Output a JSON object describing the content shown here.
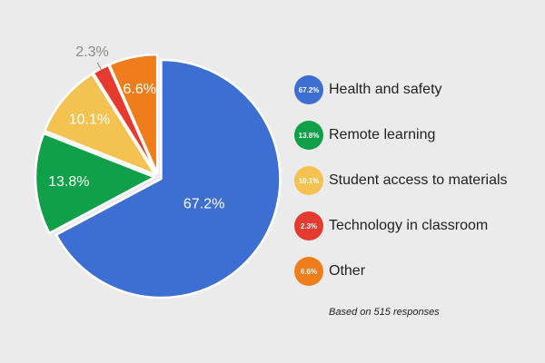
{
  "chart_data": {
    "type": "pie",
    "title": "",
    "slices": [
      {
        "label": "Health and safety",
        "value": 67.2,
        "display": "67.2%",
        "badge": "67.2%",
        "color": "#3d6fd2"
      },
      {
        "label": "Remote learning",
        "value": 13.8,
        "display": "13.8%",
        "badge": "13.8%",
        "color": "#10a04a"
      },
      {
        "label": "Student access to materials",
        "value": 10.1,
        "display": "10.1%",
        "badge": "10.1%",
        "color": "#f3c251"
      },
      {
        "label": "Technology in classroom",
        "value": 2.3,
        "display": "2.3%",
        "badge": "2.3%",
        "color": "#e53a2e"
      },
      {
        "label": "Other",
        "value": 6.6,
        "display": "6.6%",
        "badge": "6.6%",
        "color": "#f07d1b"
      }
    ],
    "legend_position": "right",
    "exploded": true,
    "start": "top",
    "direction": "clockwise"
  },
  "footnote": "Based on 515 responses"
}
